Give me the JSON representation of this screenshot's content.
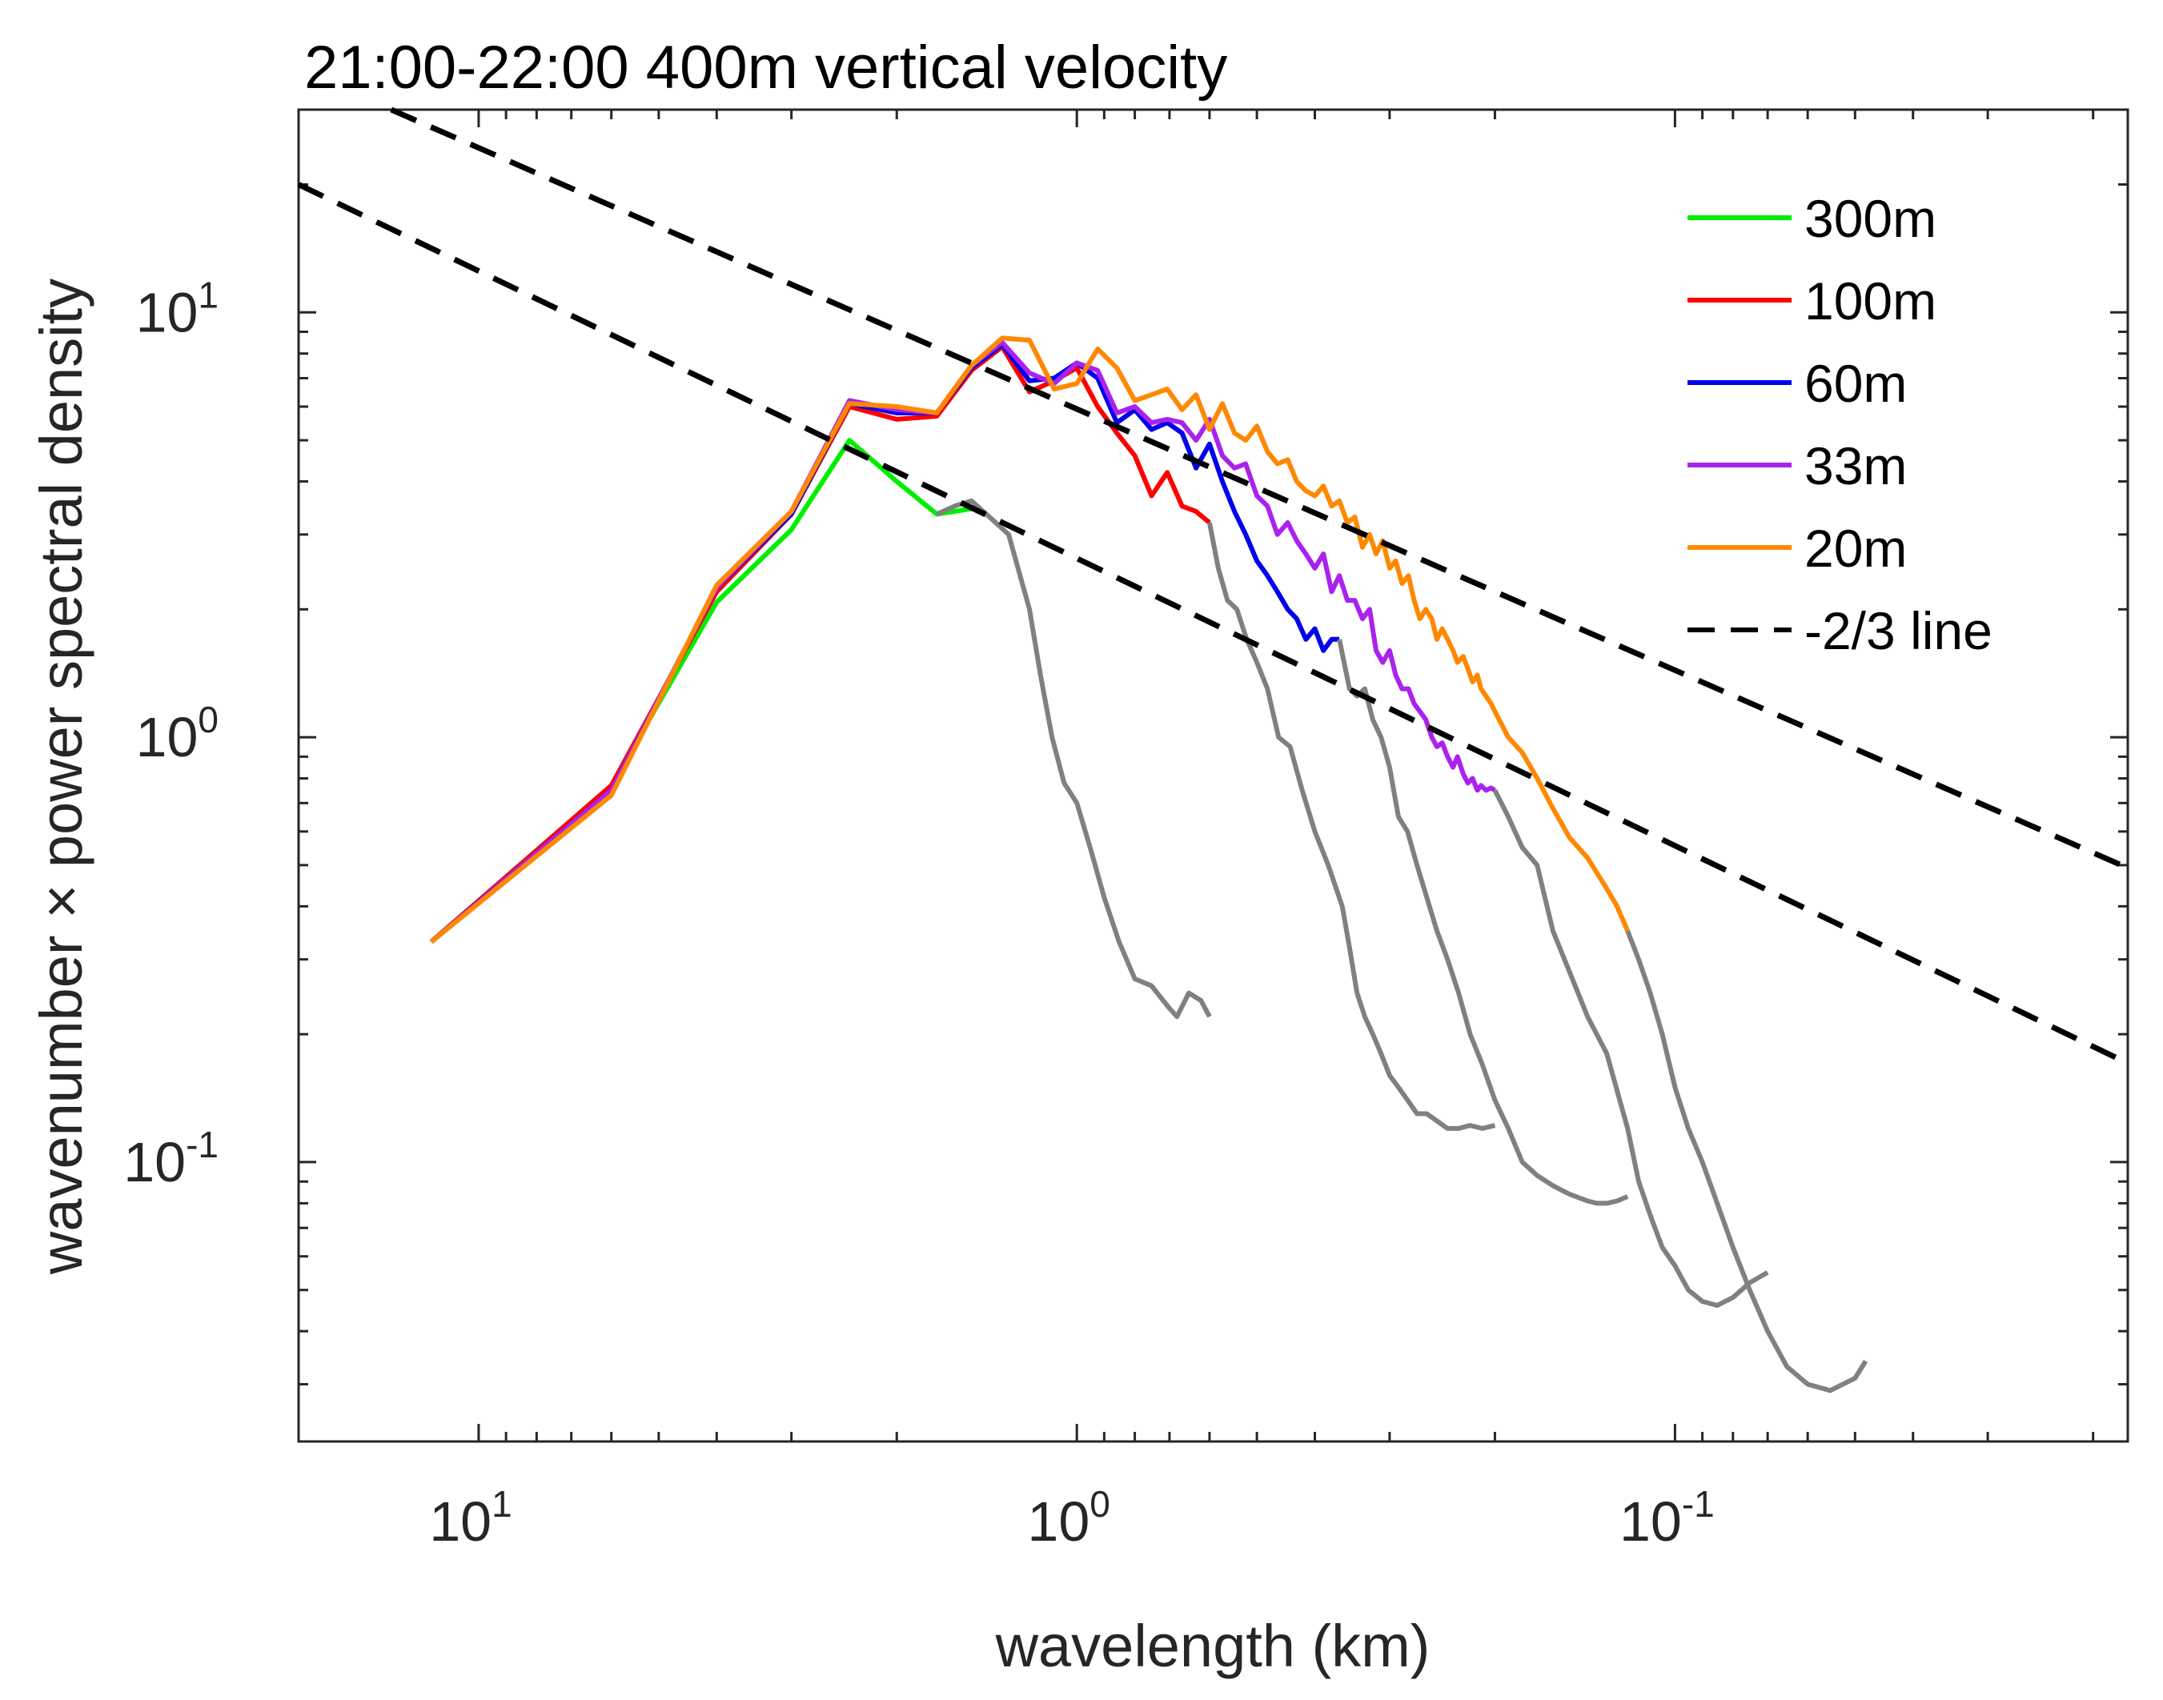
{
  "chart_data": {
    "type": "line",
    "title": "21:00-22:00 400m vertical velocity",
    "xlabel": "wavelength (km)",
    "ylabel": "wavenumber × power spectral density",
    "xscale": "log",
    "yscale": "log",
    "x_reversed": true,
    "xlim": [
      20,
      0.0175
    ],
    "ylim": [
      0.022,
      30
    ],
    "xticks": [
      {
        "value": 10,
        "base": "10",
        "exp": "1"
      },
      {
        "value": 1,
        "base": "10",
        "exp": "0"
      },
      {
        "value": 0.1,
        "base": "10",
        "exp": "-1"
      }
    ],
    "yticks": [
      {
        "value": 0.1,
        "base": "10",
        "exp": "-1"
      },
      {
        "value": 1,
        "base": "10",
        "exp": "0"
      },
      {
        "value": 10,
        "base": "10",
        "exp": "1"
      }
    ],
    "legend_position": "top-right",
    "series": [
      {
        "name": "300m",
        "color": "#00ee00",
        "style": "solid",
        "in_legend": true,
        "x": [
          12.0,
          6.0,
          4.0,
          3.0,
          2.4,
          2.0,
          1.714,
          1.5
        ],
        "y": [
          0.33,
          0.77,
          2.08,
          3.08,
          5.0,
          4.0,
          3.35,
          3.45
        ]
      },
      {
        "name": "100m",
        "color": "#ff0000",
        "style": "solid",
        "in_legend": true,
        "x": [
          12.0,
          6.0,
          4.0,
          3.0,
          2.4,
          2.0,
          1.714,
          1.5,
          1.333,
          1.2,
          1.091,
          1.0,
          0.923,
          0.857,
          0.8,
          0.75,
          0.706,
          0.667,
          0.632,
          0.6
        ],
        "y": [
          0.33,
          0.77,
          2.2,
          3.35,
          6.0,
          5.6,
          5.7,
          7.3,
          8.3,
          6.5,
          6.9,
          7.4,
          6.0,
          5.2,
          4.6,
          3.7,
          4.2,
          3.5,
          3.4,
          3.2
        ]
      },
      {
        "name": "60m",
        "color": "#0000ee",
        "style": "solid",
        "in_legend": true,
        "x": [
          12.0,
          6.0,
          4.0,
          3.0,
          2.4,
          2.0,
          1.714,
          1.5,
          1.333,
          1.2,
          1.091,
          1.0,
          0.923,
          0.857,
          0.8,
          0.75,
          0.706,
          0.667,
          0.632,
          0.6,
          0.571,
          0.545,
          0.522,
          0.5,
          0.48,
          0.462,
          0.444,
          0.429,
          0.414,
          0.4,
          0.387,
          0.375,
          0.364
        ],
        "y": [
          0.33,
          0.75,
          2.25,
          3.35,
          6.1,
          5.8,
          5.8,
          7.4,
          8.4,
          6.9,
          7.0,
          7.6,
          7.0,
          5.5,
          5.9,
          5.3,
          5.5,
          5.2,
          4.3,
          4.9,
          4.0,
          3.4,
          3.0,
          2.6,
          2.4,
          2.2,
          2.0,
          1.9,
          1.7,
          1.8,
          1.6,
          1.7,
          1.7
        ]
      },
      {
        "name": "33m",
        "color": "#aa22ee",
        "style": "solid",
        "in_legend": true,
        "x": [
          12.0,
          6.0,
          4.0,
          3.0,
          2.4,
          2.0,
          1.714,
          1.5,
          1.333,
          1.2,
          1.091,
          1.0,
          0.923,
          0.857,
          0.8,
          0.75,
          0.706,
          0.667,
          0.632,
          0.6,
          0.571,
          0.545,
          0.522,
          0.5,
          0.48,
          0.462,
          0.444,
          0.429,
          0.414,
          0.4,
          0.387,
          0.375,
          0.364,
          0.353,
          0.343,
          0.333,
          0.324,
          0.316,
          0.308,
          0.3,
          0.293,
          0.286,
          0.279,
          0.273,
          0.267,
          0.261,
          0.255,
          0.25,
          0.245,
          0.24,
          0.235,
          0.231,
          0.226,
          0.222,
          0.218,
          0.214,
          0.211,
          0.207,
          0.203,
          0.2
        ],
        "y": [
          0.33,
          0.75,
          2.25,
          3.4,
          6.2,
          5.9,
          5.8,
          7.5,
          8.5,
          7.2,
          6.8,
          7.6,
          7.3,
          5.8,
          6.0,
          5.5,
          5.6,
          5.5,
          5.0,
          5.6,
          4.6,
          4.3,
          4.4,
          3.7,
          3.5,
          3.0,
          3.2,
          2.9,
          2.7,
          2.5,
          2.7,
          2.2,
          2.4,
          2.1,
          2.1,
          1.9,
          2.0,
          1.6,
          1.5,
          1.6,
          1.4,
          1.3,
          1.3,
          1.2,
          1.15,
          1.1,
          1.0,
          0.95,
          0.97,
          0.9,
          0.85,
          0.9,
          0.82,
          0.78,
          0.8,
          0.75,
          0.77,
          0.75,
          0.76,
          0.75
        ]
      },
      {
        "name": "20m",
        "color": "#ff8800",
        "style": "solid",
        "in_legend": true,
        "x": [
          12.0,
          6.0,
          4.0,
          3.0,
          2.4,
          2.0,
          1.714,
          1.5,
          1.333,
          1.2,
          1.091,
          1.0,
          0.923,
          0.857,
          0.8,
          0.75,
          0.706,
          0.667,
          0.632,
          0.6,
          0.571,
          0.545,
          0.522,
          0.5,
          0.48,
          0.462,
          0.444,
          0.429,
          0.414,
          0.4,
          0.387,
          0.375,
          0.364,
          0.353,
          0.343,
          0.333,
          0.324,
          0.316,
          0.308,
          0.3,
          0.293,
          0.286,
          0.279,
          0.273,
          0.267,
          0.261,
          0.255,
          0.25,
          0.245,
          0.24,
          0.235,
          0.231,
          0.226,
          0.222,
          0.218,
          0.214,
          0.211,
          0.207,
          0.203,
          0.2,
          0.19,
          0.18,
          0.17,
          0.16,
          0.15,
          0.14,
          0.13,
          0.125,
          0.12
        ],
        "y": [
          0.33,
          0.73,
          2.28,
          3.4,
          6.1,
          6.0,
          5.8,
          7.5,
          8.7,
          8.6,
          6.6,
          6.8,
          8.2,
          7.4,
          6.2,
          6.4,
          6.6,
          5.9,
          6.4,
          5.3,
          6.1,
          5.2,
          5.0,
          5.4,
          4.7,
          4.4,
          4.5,
          4.0,
          3.8,
          3.7,
          3.9,
          3.5,
          3.6,
          3.2,
          3.3,
          2.8,
          3.0,
          2.7,
          2.9,
          2.5,
          2.6,
          2.3,
          2.4,
          2.1,
          1.9,
          2.0,
          1.9,
          1.7,
          1.8,
          1.7,
          1.6,
          1.5,
          1.55,
          1.45,
          1.35,
          1.4,
          1.3,
          1.25,
          1.2,
          1.15,
          1.0,
          0.92,
          0.8,
          0.68,
          0.58,
          0.52,
          0.44,
          0.4,
          0.35
        ]
      },
      {
        "name": "300m gray tail",
        "color": "#808080",
        "style": "solid",
        "in_legend": false,
        "x": [
          1.714,
          1.6,
          1.5,
          1.4,
          1.3,
          1.2,
          1.15,
          1.1,
          1.05,
          1.0,
          0.95,
          0.9,
          0.85,
          0.8,
          0.75,
          0.7,
          0.68,
          0.65,
          0.62,
          0.6
        ],
        "y": [
          3.35,
          3.5,
          3.6,
          3.3,
          3.0,
          2.0,
          1.4,
          1.0,
          0.78,
          0.7,
          0.55,
          0.42,
          0.33,
          0.27,
          0.26,
          0.23,
          0.22,
          0.25,
          0.24,
          0.22
        ]
      },
      {
        "name": "100m gray tail",
        "color": "#808080",
        "style": "solid",
        "in_legend": false,
        "x": [
          0.6,
          0.58,
          0.56,
          0.54,
          0.52,
          0.5,
          0.48,
          0.46,
          0.44,
          0.42,
          0.4,
          0.38,
          0.36,
          0.35,
          0.34,
          0.33,
          0.32,
          0.31,
          0.3,
          0.29,
          0.28,
          0.27,
          0.26,
          0.25,
          0.24,
          0.23,
          0.22,
          0.21,
          0.2
        ],
        "y": [
          3.2,
          2.5,
          2.1,
          2.0,
          1.7,
          1.5,
          1.3,
          1.0,
          0.95,
          0.75,
          0.6,
          0.5,
          0.4,
          0.32,
          0.25,
          0.22,
          0.2,
          0.18,
          0.16,
          0.15,
          0.14,
          0.13,
          0.13,
          0.125,
          0.12,
          0.12,
          0.122,
          0.12,
          0.122
        ]
      },
      {
        "name": "60m gray tail",
        "color": "#808080",
        "style": "solid",
        "in_legend": false,
        "x": [
          0.364,
          0.35,
          0.34,
          0.33,
          0.32,
          0.31,
          0.3,
          0.29,
          0.28,
          0.27,
          0.26,
          0.25,
          0.24,
          0.23,
          0.22,
          0.21,
          0.2,
          0.19,
          0.18,
          0.17,
          0.16,
          0.15,
          0.14,
          0.135,
          0.13,
          0.125,
          0.12
        ],
        "y": [
          1.7,
          1.3,
          1.25,
          1.3,
          1.1,
          1.0,
          0.85,
          0.65,
          0.6,
          0.5,
          0.42,
          0.35,
          0.3,
          0.25,
          0.2,
          0.17,
          0.14,
          0.12,
          0.1,
          0.093,
          0.088,
          0.084,
          0.081,
          0.08,
          0.08,
          0.081,
          0.083
        ]
      },
      {
        "name": "33m gray tail",
        "color": "#808080",
        "style": "solid",
        "in_legend": false,
        "x": [
          0.2,
          0.19,
          0.18,
          0.17,
          0.16,
          0.15,
          0.14,
          0.13,
          0.12,
          0.115,
          0.11,
          0.105,
          0.1,
          0.095,
          0.09,
          0.085,
          0.08,
          0.075,
          0.07
        ],
        "y": [
          0.75,
          0.65,
          0.55,
          0.5,
          0.35,
          0.28,
          0.22,
          0.18,
          0.12,
          0.09,
          0.075,
          0.063,
          0.057,
          0.05,
          0.047,
          0.046,
          0.048,
          0.052,
          0.055
        ]
      },
      {
        "name": "20m gray tail",
        "color": "#808080",
        "style": "solid",
        "in_legend": false,
        "x": [
          0.12,
          0.115,
          0.11,
          0.105,
          0.1,
          0.095,
          0.09,
          0.085,
          0.08,
          0.075,
          0.07,
          0.065,
          0.06,
          0.055,
          0.05,
          0.048
        ],
        "y": [
          0.35,
          0.3,
          0.25,
          0.2,
          0.15,
          0.12,
          0.1,
          0.08,
          0.063,
          0.05,
          0.04,
          0.033,
          0.03,
          0.029,
          0.031,
          0.034
        ]
      },
      {
        "name": "-2/3 line",
        "color": "#000000",
        "style": "dashed",
        "in_legend": true,
        "x": [
          20,
          0.0175
        ],
        "y": [
          20,
          0.1709
        ]
      },
      {
        "name": "-2/3 line (upper)",
        "color": "#000000",
        "style": "dashed",
        "in_legend": false,
        "x": [
          14.0,
          0.0175
        ],
        "y": [
          30,
          0.4925
        ]
      }
    ]
  }
}
